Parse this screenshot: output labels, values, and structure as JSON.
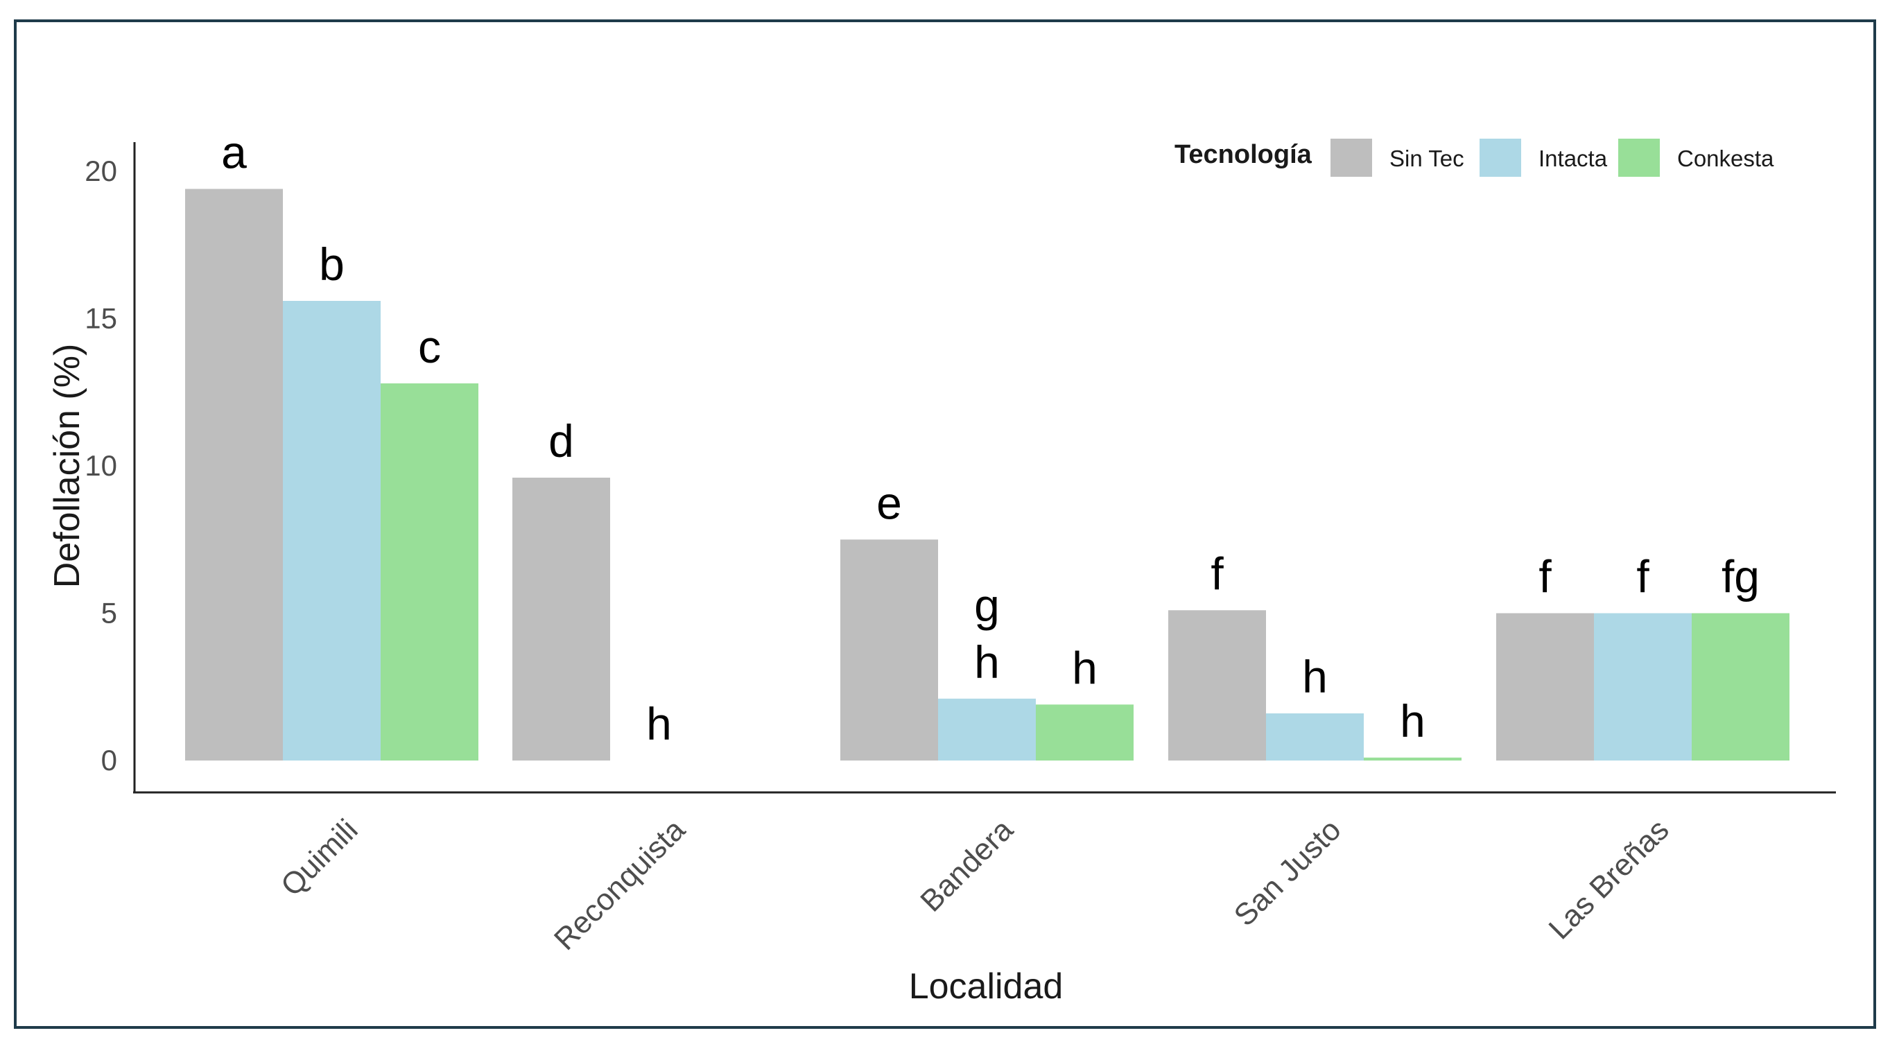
{
  "chart_data": {
    "type": "bar",
    "xlabel": "Localidad",
    "ylabel": "Defollación (%)",
    "ylim": [
      0,
      20
    ],
    "yticks": [
      0,
      5,
      10,
      15,
      20
    ],
    "grid": false,
    "legend_title": "Tecnología",
    "legend_position": "top-right",
    "categories": [
      "Quimili",
      "Reconquista",
      "Bandera",
      "San Justo",
      "Las Breñas"
    ],
    "series": [
      {
        "name": "Sin Tec",
        "color": "#bebebe",
        "values": [
          19.4,
          9.6,
          7.5,
          5.1,
          5.0
        ],
        "labels": [
          "a",
          "d",
          "e",
          "f",
          "f"
        ]
      },
      {
        "name": "Intacta",
        "color": "#add8e6",
        "values": [
          15.6,
          0,
          2.1,
          1.6,
          5.0
        ],
        "labels": [
          "b",
          "h",
          "g\nh",
          "h",
          "f"
        ]
      },
      {
        "name": "Conkesta",
        "color": "#98df98",
        "values": [
          12.8,
          0,
          1.9,
          0.1,
          5.0
        ],
        "labels": [
          "c",
          "",
          "h",
          "h",
          "fg"
        ]
      }
    ]
  }
}
